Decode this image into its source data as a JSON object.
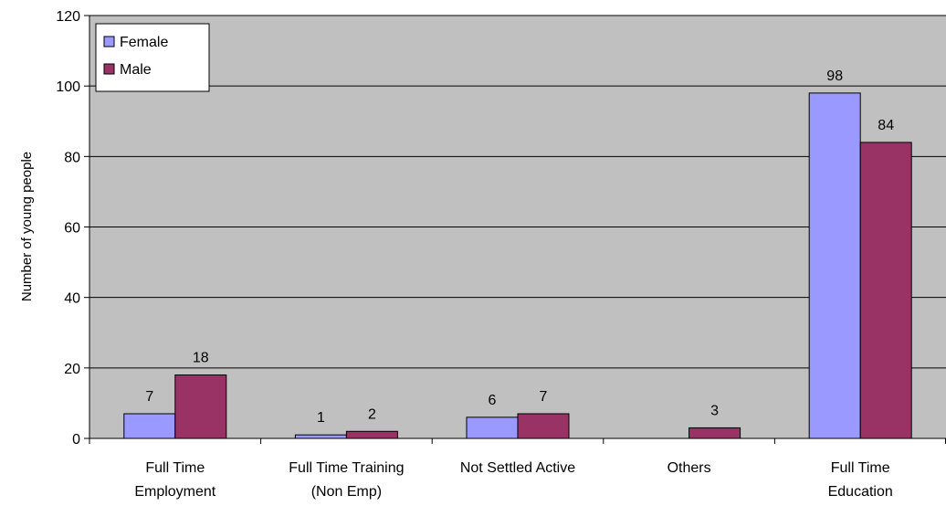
{
  "chart_data": {
    "type": "bar",
    "ylabel": "Number of young people",
    "ylim": [
      0,
      120
    ],
    "yticks": [
      0,
      20,
      40,
      60,
      80,
      100,
      120
    ],
    "grid": true,
    "legend_position": "top-left",
    "plot_background": "#c0c0c0",
    "categories": [
      [
        "Full Time",
        "Employment"
      ],
      [
        "Full Time Training",
        "(Non Emp)"
      ],
      [
        "Not Settled Active"
      ],
      [
        "Others"
      ],
      [
        "Full Time",
        "Education"
      ]
    ],
    "series": [
      {
        "name": "Female",
        "color": "#9999ff",
        "values": [
          7,
          1,
          6,
          0,
          98
        ],
        "labels": [
          "7",
          "1",
          "6",
          "",
          "98"
        ]
      },
      {
        "name": "Male",
        "color": "#993366",
        "values": [
          18,
          2,
          7,
          3,
          84
        ],
        "labels": [
          "18",
          "2",
          "7",
          "3",
          "84"
        ]
      }
    ]
  }
}
